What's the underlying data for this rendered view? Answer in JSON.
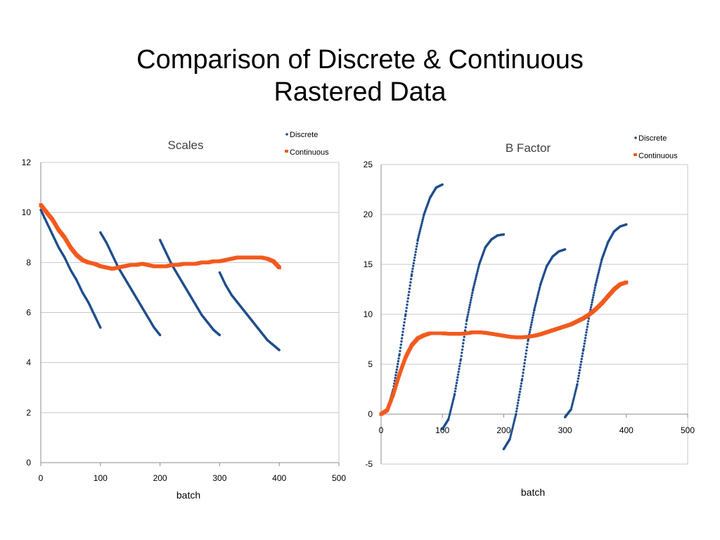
{
  "slide": {
    "title_line1": "Comparison of Discrete & Continuous",
    "title_line2": "Rastered Data"
  },
  "colors": {
    "discrete": "#1f4e8c",
    "continuous": "#f25a1f",
    "grid": "#c8c8c8",
    "axis": "#8c8c8c"
  },
  "chart_data": [
    {
      "type": "scatter",
      "title": "Scales",
      "xlabel": "batch",
      "ylabel": "",
      "xlim": [
        0,
        500
      ],
      "ylim": [
        0,
        12
      ],
      "x_ticks": [
        "0",
        "100",
        "200",
        "300",
        "400",
        "500"
      ],
      "y_ticks": [
        "0",
        "2",
        "4",
        "6",
        "8",
        "10",
        "12"
      ],
      "grid": true,
      "legend": "top-right",
      "series": [
        {
          "name": "Discrete",
          "segments": [
            {
              "x": [
                0,
                10,
                20,
                30,
                40,
                50,
                60,
                70,
                80,
                90,
                100
              ],
              "y": [
                10.1,
                9.6,
                9.1,
                8.6,
                8.2,
                7.7,
                7.3,
                6.8,
                6.4,
                5.9,
                5.4
              ]
            },
            {
              "x": [
                100,
                110,
                120,
                130,
                140,
                150,
                160,
                170,
                180,
                190,
                200
              ],
              "y": [
                9.2,
                8.8,
                8.3,
                7.8,
                7.4,
                7.0,
                6.6,
                6.2,
                5.8,
                5.4,
                5.1
              ]
            },
            {
              "x": [
                200,
                210,
                220,
                230,
                240,
                250,
                260,
                270,
                280,
                290,
                300
              ],
              "y": [
                8.9,
                8.4,
                7.9,
                7.5,
                7.1,
                6.7,
                6.3,
                5.9,
                5.6,
                5.3,
                5.1
              ]
            },
            {
              "x": [
                300,
                310,
                320,
                330,
                340,
                350,
                360,
                370,
                380,
                390,
                400
              ],
              "y": [
                7.6,
                7.1,
                6.7,
                6.4,
                6.1,
                5.8,
                5.5,
                5.2,
                4.9,
                4.7,
                4.5
              ]
            }
          ]
        },
        {
          "name": "Continuous",
          "x": [
            0,
            10,
            20,
            30,
            40,
            50,
            60,
            70,
            80,
            90,
            100,
            110,
            120,
            130,
            140,
            150,
            160,
            170,
            180,
            190,
            200,
            210,
            220,
            230,
            240,
            250,
            260,
            270,
            280,
            290,
            300,
            310,
            320,
            330,
            340,
            350,
            360,
            370,
            380,
            390,
            400
          ],
          "y": [
            10.3,
            10.0,
            9.7,
            9.3,
            9.0,
            8.6,
            8.3,
            8.1,
            8.0,
            7.95,
            7.85,
            7.8,
            7.75,
            7.8,
            7.85,
            7.9,
            7.9,
            7.95,
            7.9,
            7.85,
            7.85,
            7.85,
            7.9,
            7.9,
            7.95,
            7.95,
            7.95,
            8.0,
            8.0,
            8.05,
            8.05,
            8.1,
            8.15,
            8.2,
            8.2,
            8.2,
            8.2,
            8.2,
            8.15,
            8.05,
            7.8
          ]
        }
      ]
    },
    {
      "type": "scatter",
      "title": "B Factor",
      "xlabel": "batch",
      "ylabel": "",
      "xlim": [
        0,
        500
      ],
      "ylim": [
        -5,
        25
      ],
      "x_ticks": [
        "0",
        "100",
        "200",
        "300",
        "400",
        "500"
      ],
      "y_ticks": [
        "-5",
        "0",
        "5",
        "10",
        "15",
        "20",
        "25"
      ],
      "grid": true,
      "legend": "top-right",
      "series": [
        {
          "name": "Discrete",
          "segments": [
            {
              "x": [
                0,
                10,
                20,
                30,
                40,
                50,
                60,
                70,
                80,
                90,
                100
              ],
              "y": [
                0,
                0.4,
                2.5,
                6.0,
                10.0,
                14.0,
                17.5,
                20.0,
                21.7,
                22.7,
                23.0
              ]
            },
            {
              "x": [
                100,
                110,
                120,
                130,
                140,
                150,
                160,
                170,
                180,
                190,
                200
              ],
              "y": [
                -1.5,
                -0.5,
                2.0,
                5.5,
                9.5,
                12.5,
                15.0,
                16.7,
                17.5,
                17.9,
                18.0
              ]
            },
            {
              "x": [
                200,
                210,
                220,
                230,
                240,
                250,
                260,
                270,
                280,
                290,
                300
              ],
              "y": [
                -3.5,
                -2.5,
                0.0,
                3.5,
                7.5,
                10.5,
                13.0,
                14.8,
                15.8,
                16.3,
                16.5
              ]
            },
            {
              "x": [
                300,
                310,
                320,
                330,
                340,
                350,
                360,
                370,
                380,
                390,
                400
              ],
              "y": [
                -0.3,
                0.5,
                3.0,
                6.5,
                10.0,
                13.0,
                15.5,
                17.2,
                18.3,
                18.8,
                19.0
              ]
            }
          ]
        },
        {
          "name": "Continuous",
          "x": [
            0,
            10,
            20,
            30,
            40,
            50,
            60,
            70,
            80,
            90,
            100,
            110,
            120,
            130,
            140,
            150,
            160,
            170,
            180,
            190,
            200,
            210,
            220,
            230,
            240,
            250,
            260,
            270,
            280,
            290,
            300,
            310,
            320,
            330,
            340,
            350,
            360,
            370,
            380,
            390,
            400
          ],
          "y": [
            0,
            0.4,
            2.0,
            4.0,
            5.7,
            6.9,
            7.6,
            7.9,
            8.1,
            8.1,
            8.1,
            8.05,
            8.05,
            8.05,
            8.1,
            8.2,
            8.2,
            8.15,
            8.05,
            7.95,
            7.85,
            7.75,
            7.7,
            7.7,
            7.75,
            7.85,
            8.0,
            8.2,
            8.4,
            8.6,
            8.8,
            9.0,
            9.3,
            9.6,
            10.0,
            10.5,
            11.1,
            11.8,
            12.5,
            13.0,
            13.2
          ]
        }
      ]
    }
  ]
}
